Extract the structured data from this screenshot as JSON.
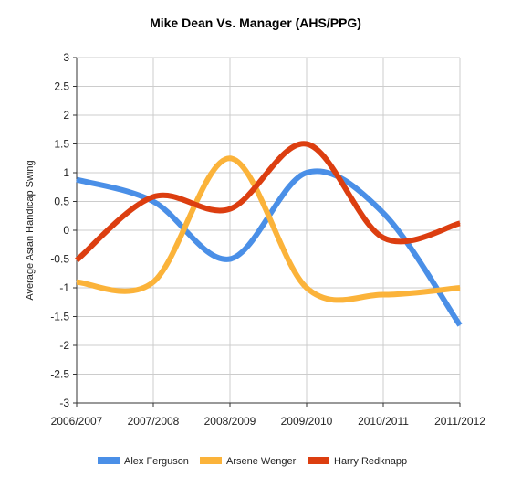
{
  "chart_data": {
    "type": "line",
    "title": "Mike Dean Vs. Manager (AHS/PPG)",
    "xlabel": "",
    "ylabel": "Average Asian Handicap Swing",
    "categories": [
      "2006/2007",
      "2007/2008",
      "2008/2009",
      "2009/2010",
      "2010/2011",
      "2011/2012"
    ],
    "ylim": [
      -3,
      3
    ],
    "yticks": [
      "3",
      "2.5",
      "2",
      "1.5",
      "1",
      "0.5",
      "0",
      "-0.5",
      "-1",
      "-1.5",
      "-2",
      "-2.5",
      "-3"
    ],
    "grid": true,
    "legend_position": "bottom",
    "series": [
      {
        "name": "Alex Ferguson",
        "color": "#4a8fe7",
        "values": [
          0.88,
          0.5,
          -0.5,
          1.0,
          0.3,
          -1.65
        ]
      },
      {
        "name": "Arsene Wenger",
        "color": "#fbb33a",
        "values": [
          -0.9,
          -0.9,
          1.25,
          -1.0,
          -1.12,
          -1.0
        ]
      },
      {
        "name": "Harry Redknapp",
        "color": "#dc3e10",
        "values": [
          -0.52,
          0.58,
          0.37,
          1.5,
          -0.13,
          0.12
        ]
      }
    ]
  }
}
